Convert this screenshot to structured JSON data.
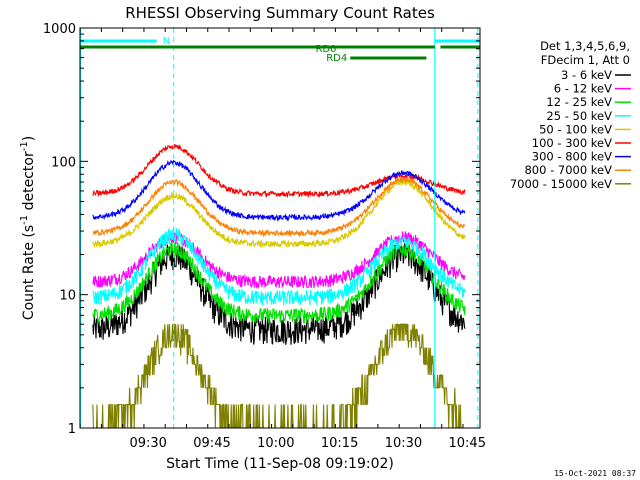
{
  "chart_data": {
    "type": "line",
    "title": "RHESSI Observing Summary Count Rates",
    "xlabel": "Start Time (11-Sep-08 09:19:02)",
    "ylabel_main": "Count Rate (s",
    "ylabel_sup1": "-1",
    "ylabel_mid": " detector",
    "ylabel_sup2": "-1",
    "ylabel_end": ")",
    "yscale": "log",
    "ylim": [
      1,
      1000
    ],
    "xlim_minutes": [
      9.97,
      104.0
    ],
    "x_ticks": [
      {
        "t": 26.0,
        "label": "09:30"
      },
      {
        "t": 41.0,
        "label": "09:45"
      },
      {
        "t": 56.0,
        "label": "10:00"
      },
      {
        "t": 71.0,
        "label": "10:15"
      },
      {
        "t": 86.0,
        "label": "10:30"
      },
      {
        "t": 101.0,
        "label": "10:45"
      }
    ],
    "y_ticks": [
      {
        "v": 1,
        "label": "1"
      },
      {
        "v": 10,
        "label": "10"
      },
      {
        "v": 100,
        "label": "100"
      },
      {
        "v": 1000,
        "label": "1000"
      }
    ],
    "legend_header": [
      "Det 1,3,4,5,6,9,",
      "FDecim 1, Att 0"
    ],
    "legend_position": "right",
    "timestamp": "15-Oct-2021 08:37",
    "series": [
      {
        "name": "3 - 6 keV",
        "color": "#000000",
        "base": 5.5,
        "peak1": 20,
        "peak2": 20,
        "noise": 0.11
      },
      {
        "name": "6 - 12 keV",
        "color": "#ff00ff",
        "base": 12.5,
        "peak1": 27,
        "peak2": 27,
        "noise": 0.05
      },
      {
        "name": "12 - 25 keV",
        "color": "#00e000",
        "base": 7,
        "peak1": 22,
        "peak2": 22,
        "noise": 0.06
      },
      {
        "name": "25 - 50 keV",
        "color": "#00ffff",
        "base": 9.5,
        "peak1": 28,
        "peak2": 25,
        "noise": 0.06
      },
      {
        "name": "50 - 100 keV",
        "color": "#d8c800",
        "base": 24,
        "peak1": 55,
        "peak2": 70,
        "noise": 0.025
      },
      {
        "name": "100 - 300 keV",
        "color": "#ff0000",
        "base": 57,
        "peak1": 130,
        "peak2": 78,
        "noise": 0.02
      },
      {
        "name": "300 - 800 keV",
        "color": "#0000ff",
        "base": 38,
        "peak1": 98,
        "peak2": 82,
        "noise": 0.02
      },
      {
        "name": "800 - 7000 keV",
        "color": "#ff7f00",
        "base": 29,
        "peak1": 70,
        "peak2": 73,
        "noise": 0.02
      },
      {
        "name": "7000 - 15000 keV",
        "color": "#808000",
        "base": 1,
        "peak1": 5.2,
        "peak2": 5.5,
        "noise": 0.0
      }
    ],
    "peaks_minutes": [
      32.0,
      86.0
    ],
    "gaps_minutes": [
      [
        9.97,
        13.0
      ],
      [
        100.5,
        104.0
      ]
    ],
    "night_boundaries_minutes": [
      9.97,
      93.4
    ],
    "saa_minutes": [
      103.5
    ],
    "flag_bars": [
      {
        "label": "N",
        "color": "#00ffff",
        "start": 10.0,
        "end": 28.0,
        "row": 1
      },
      {
        "label": "",
        "color": "#00ffff",
        "start": 93.4,
        "end": 104.0,
        "row": 1
      },
      {
        "label": "RD0",
        "color": "#008000",
        "start": 10.0,
        "end": 93.4,
        "row": 2
      },
      {
        "label": "",
        "color": "#008000",
        "start": 94.7,
        "end": 104.0,
        "row": 2
      },
      {
        "label": "RD4",
        "color": "#008000",
        "start": 73.5,
        "end": 91.4,
        "row": 3
      }
    ]
  }
}
